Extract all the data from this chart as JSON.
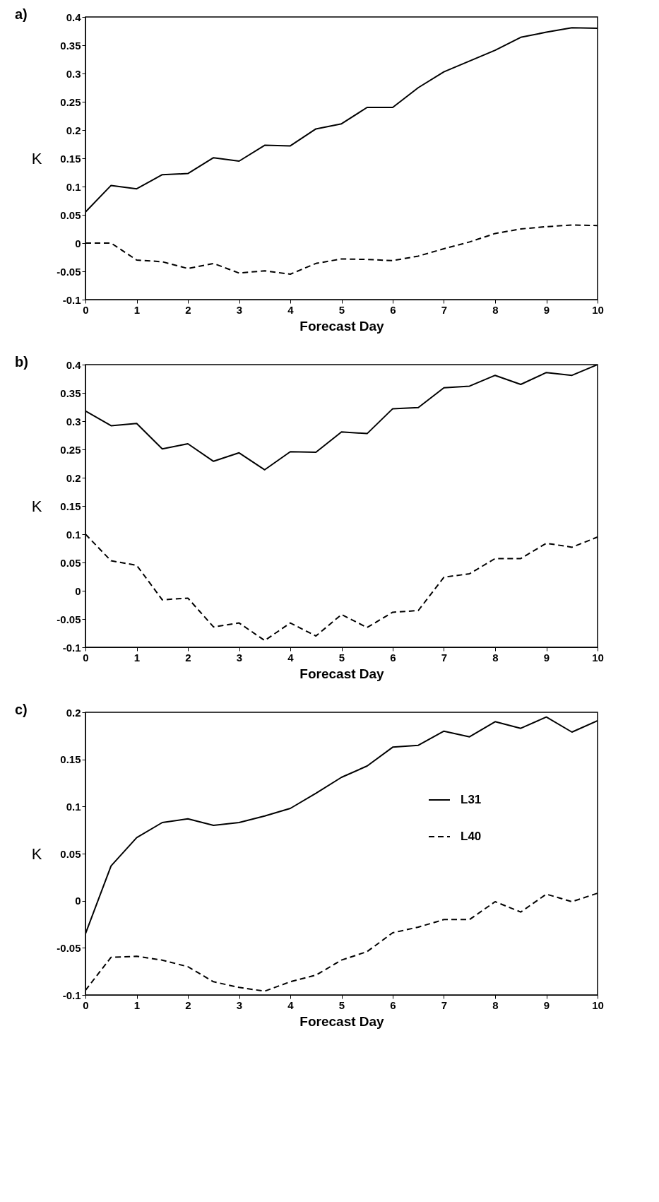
{
  "chart_data": [
    {
      "type": "line",
      "title": "a)",
      "xlabel": "Forecast Day",
      "ylabel": "K",
      "x": [
        0,
        0.5,
        1,
        1.5,
        2,
        2.5,
        3,
        3.5,
        4,
        4.5,
        5,
        5.5,
        6,
        6.5,
        7,
        7.5,
        8,
        8.5,
        9,
        9.5,
        10
      ],
      "xlim": [
        0,
        10
      ],
      "xticks": [
        0,
        1,
        2,
        3,
        4,
        5,
        6,
        7,
        8,
        9,
        10
      ],
      "ylim": [
        -0.1,
        0.4
      ],
      "yticks": [
        -0.1,
        -0.05,
        0,
        0.05,
        0.1,
        0.15,
        0.2,
        0.25,
        0.3,
        0.35,
        0.4
      ],
      "grid": false,
      "series": [
        {
          "color": "#000000",
          "line_style": "solid",
          "values": [
            0.055,
            0.102,
            0.096,
            0.121,
            0.123,
            0.151,
            0.145,
            0.173,
            0.172,
            0.202,
            0.211,
            0.24,
            0.24,
            0.275,
            0.303,
            0.322,
            0.341,
            0.364,
            0.373,
            0.381,
            0.38
          ]
        },
        {
          "color": "#000000",
          "line_style": "dashed",
          "values": [
            0,
            0,
            -0.03,
            -0.033,
            -0.045,
            -0.036,
            -0.053,
            -0.049,
            -0.055,
            -0.036,
            -0.028,
            -0.029,
            -0.031,
            -0.023,
            -0.01,
            0.002,
            0.017,
            0.025,
            0.029,
            0.032,
            0.031
          ]
        }
      ]
    },
    {
      "type": "line",
      "title": "b)",
      "xlabel": "Forecast Day",
      "ylabel": "K",
      "x": [
        0,
        0.5,
        1,
        1.5,
        2,
        2.5,
        3,
        3.5,
        4,
        4.5,
        5,
        5.5,
        6,
        6.5,
        7,
        7.5,
        8,
        8.5,
        9,
        9.5,
        10
      ],
      "xlim": [
        0,
        10
      ],
      "xticks": [
        0,
        1,
        2,
        3,
        4,
        5,
        6,
        7,
        8,
        9,
        10
      ],
      "ylim": [
        -0.1,
        0.4
      ],
      "yticks": [
        -0.1,
        -0.05,
        0,
        0.05,
        0.1,
        0.15,
        0.2,
        0.25,
        0.3,
        0.35,
        0.4
      ],
      "grid": false,
      "series": [
        {
          "color": "#000000",
          "line_style": "solid",
          "values": [
            0.318,
            0.292,
            0.296,
            0.251,
            0.26,
            0.229,
            0.244,
            0.214,
            0.246,
            0.245,
            0.281,
            0.278,
            0.322,
            0.324,
            0.359,
            0.362,
            0.381,
            0.365,
            0.386,
            0.381,
            0.4
          ]
        },
        {
          "color": "#000000",
          "line_style": "dashed",
          "values": [
            0.1,
            0.053,
            0.045,
            -0.016,
            -0.013,
            -0.064,
            -0.057,
            -0.088,
            -0.057,
            -0.08,
            -0.042,
            -0.065,
            -0.038,
            -0.035,
            0.024,
            0.03,
            0.057,
            0.057,
            0.084,
            0.077,
            0.095
          ]
        }
      ]
    },
    {
      "type": "line",
      "title": "c)",
      "xlabel": "Forecast Day",
      "ylabel": "K",
      "x": [
        0,
        0.5,
        1,
        1.5,
        2,
        2.5,
        3,
        3.5,
        4,
        4.5,
        5,
        5.5,
        6,
        6.5,
        7,
        7.5,
        8,
        8.5,
        9,
        9.5,
        10
      ],
      "xlim": [
        0,
        10
      ],
      "xticks": [
        0,
        1,
        2,
        3,
        4,
        5,
        6,
        7,
        8,
        9,
        10
      ],
      "ylim": [
        -0.1,
        0.2
      ],
      "yticks": [
        -0.1,
        -0.05,
        0,
        0.05,
        0.1,
        0.15,
        0.2
      ],
      "grid": false,
      "legend": "right",
      "series": [
        {
          "name": "L31",
          "color": "#000000",
          "line_style": "solid",
          "values": [
            -0.035,
            0.037,
            0.067,
            0.083,
            0.087,
            0.08,
            0.083,
            0.09,
            0.098,
            0.114,
            0.131,
            0.143,
            0.163,
            0.165,
            0.18,
            0.174,
            0.19,
            0.183,
            0.195,
            0.179,
            0.191
          ]
        },
        {
          "name": "L40",
          "color": "#000000",
          "line_style": "dashed",
          "values": [
            -0.095,
            -0.06,
            -0.059,
            -0.063,
            -0.07,
            -0.086,
            -0.092,
            -0.096,
            -0.086,
            -0.079,
            -0.063,
            -0.054,
            -0.034,
            -0.028,
            -0.02,
            -0.02,
            -0.001,
            -0.012,
            0.007,
            -0.001,
            0.008
          ]
        }
      ]
    }
  ]
}
